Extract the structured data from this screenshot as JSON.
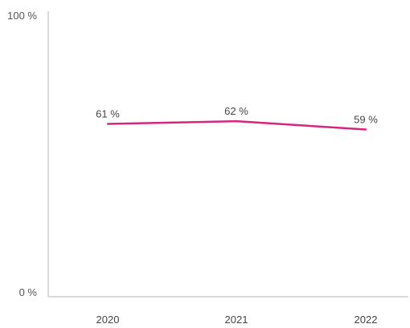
{
  "chart_data": {
    "type": "line",
    "categories": [
      "2020",
      "2021",
      "2022"
    ],
    "series": [
      {
        "values": [
          61,
          62,
          59
        ],
        "data_labels": [
          "61 %",
          "62 %",
          "59 %"
        ],
        "color": "#d4257f"
      }
    ],
    "ylim": [
      0,
      100
    ],
    "y_tick_labels": [
      "0 %",
      "100 %"
    ],
    "grid": false,
    "legend": "none",
    "axis_color": "#d9d9d9"
  }
}
